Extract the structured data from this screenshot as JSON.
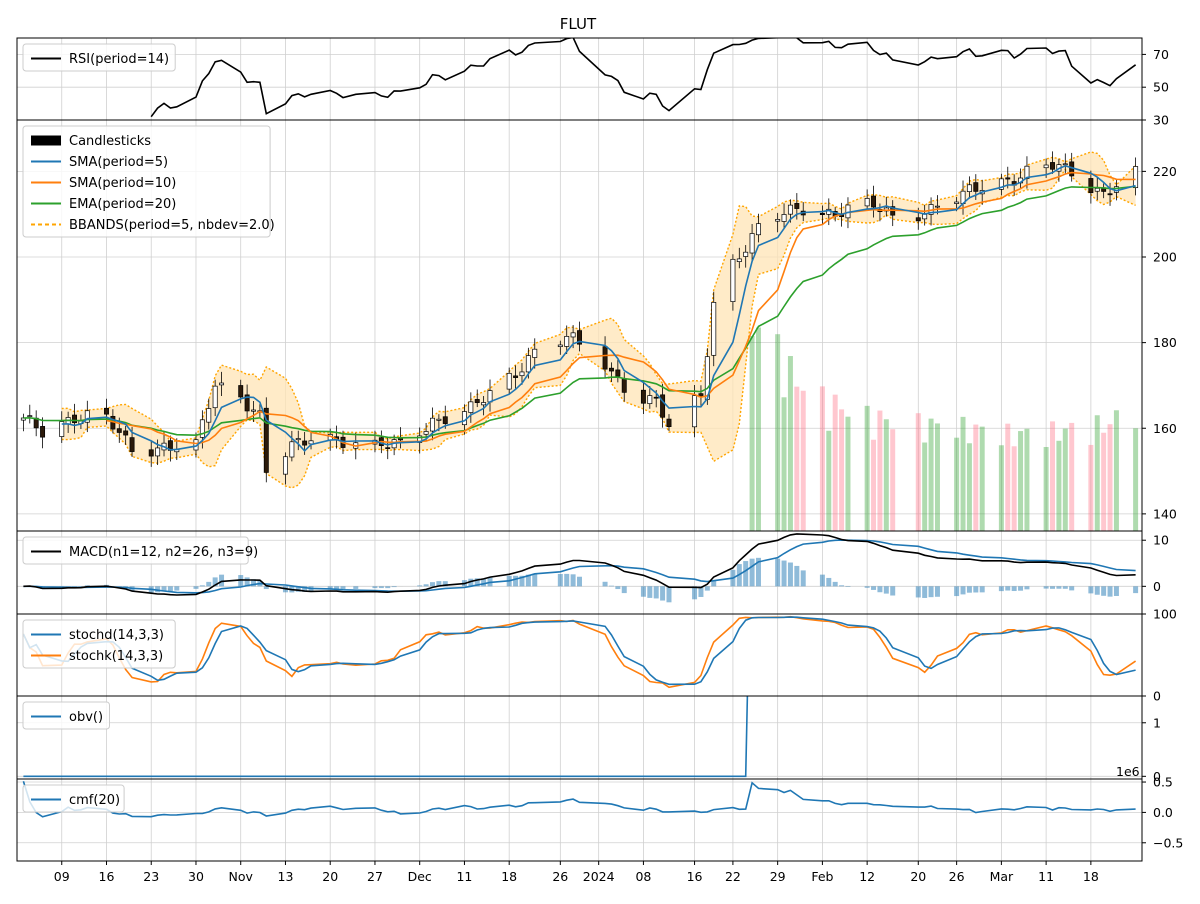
{
  "title": "FLUT",
  "x_axis": {
    "tick_labels": [
      "09",
      "16",
      "23",
      "30",
      "Nov",
      "13",
      "20",
      "27",
      "Dec",
      "11",
      "18",
      "26",
      "2024",
      "08",
      "16",
      "22",
      "29",
      "Feb",
      "12",
      "20",
      "26",
      "Mar",
      "11",
      "18"
    ]
  },
  "chart_data": {
    "type": "line",
    "title": "FLUT",
    "dates": [
      "2023-10-03",
      "2023-10-04",
      "2023-10-05",
      "2023-10-06",
      "2023-10-09",
      "2023-10-10",
      "2023-10-11",
      "2023-10-12",
      "2023-10-13",
      "2023-10-16",
      "2023-10-17",
      "2023-10-18",
      "2023-10-19",
      "2023-10-20",
      "2023-10-23",
      "2023-10-24",
      "2023-10-25",
      "2023-10-26",
      "2023-10-27",
      "2023-10-30",
      "2023-10-31",
      "2023-11-01",
      "2023-11-02",
      "2023-11-03",
      "2023-11-06",
      "2023-11-07",
      "2023-11-08",
      "2023-11-09",
      "2023-11-10",
      "2023-11-13",
      "2023-11-14",
      "2023-11-15",
      "2023-11-16",
      "2023-11-17",
      "2023-11-20",
      "2023-11-21",
      "2023-11-22",
      "2023-11-24",
      "2023-11-27",
      "2023-11-28",
      "2023-11-29",
      "2023-11-30",
      "2023-12-01",
      "2023-12-04",
      "2023-12-05",
      "2023-12-06",
      "2023-12-07",
      "2023-12-08",
      "2023-12-11",
      "2023-12-12",
      "2023-12-13",
      "2023-12-14",
      "2023-12-15",
      "2023-12-18",
      "2023-12-19",
      "2023-12-20",
      "2023-12-21",
      "2023-12-22",
      "2023-12-26",
      "2023-12-27",
      "2023-12-28",
      "2023-12-29",
      "2024-01-02",
      "2024-01-03",
      "2024-01-04",
      "2024-01-05",
      "2024-01-08",
      "2024-01-09",
      "2024-01-10",
      "2024-01-11",
      "2024-01-12",
      "2024-01-16",
      "2024-01-17",
      "2024-01-18",
      "2024-01-19",
      "2024-01-22",
      "2024-01-23",
      "2024-01-24",
      "2024-01-25",
      "2024-01-26",
      "2024-01-29",
      "2024-01-30",
      "2024-01-31",
      "2024-02-01",
      "2024-02-02",
      "2024-02-05",
      "2024-02-06",
      "2024-02-07",
      "2024-02-08",
      "2024-02-09",
      "2024-02-12",
      "2024-02-13",
      "2024-02-14",
      "2024-02-15",
      "2024-02-16",
      "2024-02-20",
      "2024-02-21",
      "2024-02-22",
      "2024-02-23",
      "2024-02-26",
      "2024-02-27",
      "2024-02-28",
      "2024-02-29",
      "2024-03-01",
      "2024-03-04",
      "2024-03-05",
      "2024-03-06",
      "2024-03-07",
      "2024-03-08",
      "2024-03-11",
      "2024-03-12",
      "2024-03-13",
      "2024-03-14",
      "2024-03-15",
      "2024-03-18",
      "2024-03-19",
      "2024-03-20",
      "2024-03-21",
      "2024-03-22",
      "2024-03-25"
    ],
    "close_anchors": [
      [
        "2023-10-03",
        161.5
      ],
      [
        "2023-10-06",
        159.5
      ],
      [
        "2023-10-11",
        163
      ],
      [
        "2023-10-16",
        162
      ],
      [
        "2023-10-20",
        155
      ],
      [
        "2023-10-25",
        156
      ],
      [
        "2023-10-30",
        155.5
      ],
      [
        "2023-11-02",
        170
      ],
      [
        "2023-11-06",
        168
      ],
      [
        "2023-11-09",
        163
      ],
      [
        "2023-11-10",
        150
      ],
      [
        "2023-11-14",
        155
      ],
      [
        "2023-11-17",
        158
      ],
      [
        "2023-11-21",
        158
      ],
      [
        "2023-11-27",
        155.5
      ],
      [
        "2023-12-01",
        156
      ],
      [
        "2023-12-06",
        162
      ],
      [
        "2023-12-12",
        164
      ],
      [
        "2023-12-18",
        172
      ],
      [
        "2023-12-22",
        178
      ],
      [
        "2023-12-27",
        181
      ],
      [
        "2024-01-02",
        175
      ],
      [
        "2024-01-05",
        170
      ],
      [
        "2024-01-10",
        166
      ],
      [
        "2024-01-12",
        160
      ],
      [
        "2024-01-17",
        167
      ],
      [
        "2024-01-19",
        190
      ],
      [
        "2024-01-22",
        199
      ],
      [
        "2024-01-26",
        206
      ],
      [
        "2024-01-30",
        210
      ],
      [
        "2024-02-02",
        212
      ],
      [
        "2024-02-07",
        210
      ],
      [
        "2024-02-13",
        212
      ],
      [
        "2024-02-16",
        210
      ],
      [
        "2024-02-22",
        211
      ],
      [
        "2024-02-27",
        214
      ],
      [
        "2024-03-01",
        217
      ],
      [
        "2024-03-07",
        219
      ],
      [
        "2024-03-12",
        221
      ],
      [
        "2024-03-15",
        220
      ],
      [
        "2024-03-20",
        215
      ],
      [
        "2024-03-25",
        219
      ]
    ],
    "volume_anchors": [
      [
        "2024-01-26",
        5800000
      ],
      [
        "2024-01-29",
        5100000
      ],
      [
        "2024-02-01",
        4200000
      ],
      [
        "2024-02-06",
        3600000
      ],
      [
        "2024-02-12",
        3200000
      ],
      [
        "2024-02-20",
        3000000
      ],
      [
        "2024-02-27",
        2900000
      ],
      [
        "2024-03-06",
        2700000
      ],
      [
        "2024-03-13",
        2800000
      ],
      [
        "2024-03-21",
        3000000
      ],
      [
        "2024-03-25",
        3600000
      ]
    ],
    "panels": [
      {
        "id": "rsi",
        "legend": [
          "RSI(period=14)"
        ],
        "yticks": [
          "30",
          "50",
          "70"
        ]
      },
      {
        "id": "price",
        "legend": [
          "Candlesticks",
          "SMA(period=5)",
          "SMA(period=10)",
          "EMA(period=20)",
          "BBANDS(period=5, nbdev=2.0)"
        ],
        "yticks": [
          "140",
          "160",
          "180",
          "200",
          "220"
        ]
      },
      {
        "id": "macd",
        "legend": [
          "MACD(n1=12, n2=26, n3=9)"
        ],
        "yticks": [
          "0",
          "10"
        ]
      },
      {
        "id": "stoch",
        "legend": [
          "stochd(14,3,3)",
          "stochk(14,3,3)"
        ],
        "yticks": [
          "0",
          "100"
        ]
      },
      {
        "id": "obv",
        "legend": [
          "obv()"
        ],
        "yticks": [
          "0",
          "1"
        ],
        "offset_text": "1e6"
      },
      {
        "id": "cmf",
        "legend": [
          "cmf(20)"
        ],
        "yticks": [
          "−0.5",
          "0.0",
          "0.5"
        ]
      }
    ],
    "colors": {
      "rsi": "#000000",
      "rsi_fill": "#1f77b4",
      "sma5": "#1f77b4",
      "sma10": "#ff7f0e",
      "ema20": "#2ca02c",
      "bb": "#ffa500",
      "bb_fill": "#ffe4b5",
      "vol_up": "#2ca02c",
      "vol_down": "#ff6b81",
      "macd": "#000000",
      "signal": "#1f77b4",
      "hist": "#1f77b4",
      "stochd": "#1f77b4",
      "stochk": "#ff7f0e",
      "obv": "#1f77b4",
      "cmf": "#1f77b4",
      "grid": "#d0d0d0"
    }
  }
}
